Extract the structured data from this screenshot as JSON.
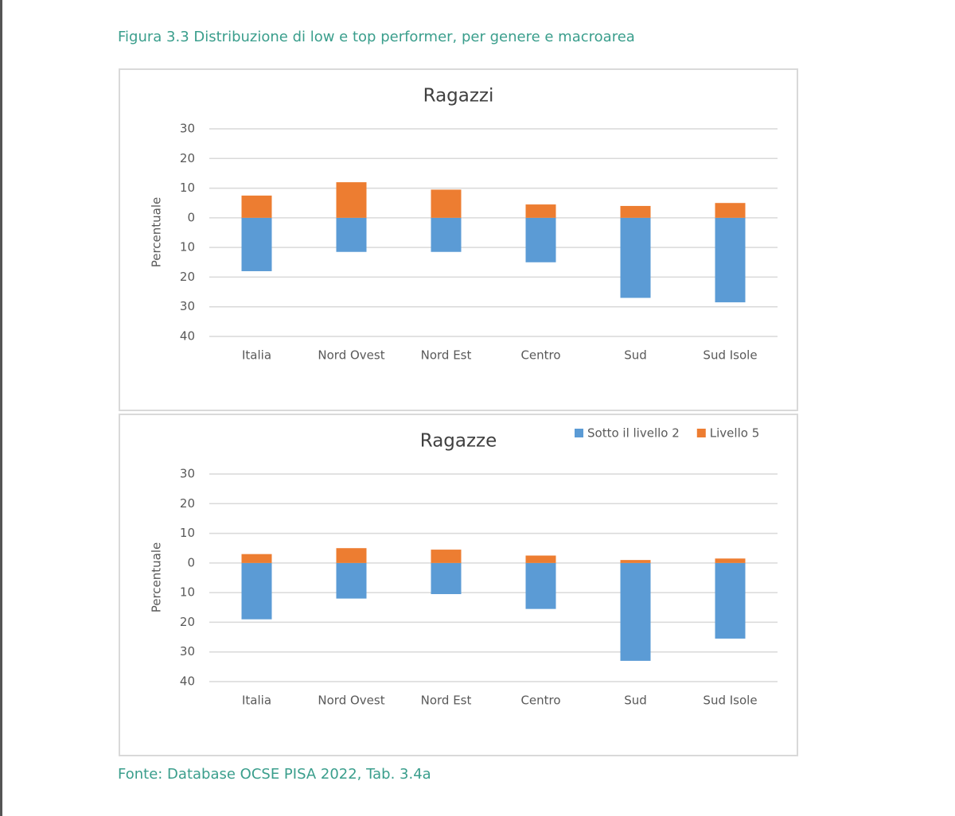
{
  "caption": "Figura 3.3 Distribuzione di low e top performer, per genere e macroarea",
  "source": "Fonte: Database OCSE PISA 2022, Tab. 3.4a",
  "chart_data": [
    {
      "type": "bar",
      "title": "Ragazzi",
      "y_label": "Percentuale",
      "categories": [
        "Italia",
        "Nord Ovest",
        "Nord Est",
        "Centro",
        "Sud",
        "Sud Isole"
      ],
      "series": [
        {
          "name": "Sotto il livello 2",
          "color": "#5b9bd5",
          "values": [
            -18,
            -11.5,
            -11.5,
            -15,
            -27,
            -28.5
          ]
        },
        {
          "name": "Livello 5",
          "color": "#ed7d31",
          "values": [
            7.5,
            12,
            9.5,
            4.5,
            4,
            5
          ]
        }
      ],
      "ylim": [
        -40,
        30
      ],
      "yticks": [
        30,
        20,
        10,
        0,
        {
          "value": -10,
          "label": "10"
        },
        {
          "value": -20,
          "label": "20"
        },
        {
          "value": -30,
          "label": "30"
        },
        {
          "value": -40,
          "label": "40"
        }
      ],
      "grid": true
    },
    {
      "type": "bar",
      "title": "Ragazze",
      "y_label": "Percentuale",
      "categories": [
        "Italia",
        "Nord Ovest",
        "Nord Est",
        "Centro",
        "Sud",
        "Sud Isole"
      ],
      "series": [
        {
          "name": "Sotto il livello 2",
          "color": "#5b9bd5",
          "values": [
            -19,
            -12,
            -10.5,
            -15.5,
            -33,
            -25.5
          ]
        },
        {
          "name": "Livello 5",
          "color": "#ed7d31",
          "values": [
            3,
            5,
            4.5,
            2.5,
            1,
            1.5
          ]
        }
      ],
      "ylim": [
        -40,
        30
      ],
      "yticks": [
        30,
        20,
        10,
        0,
        {
          "value": -10,
          "label": "10"
        },
        {
          "value": -20,
          "label": "20"
        },
        {
          "value": -30,
          "label": "30"
        },
        {
          "value": -40,
          "label": "40"
        }
      ],
      "grid": true,
      "legend": "top-right"
    }
  ]
}
